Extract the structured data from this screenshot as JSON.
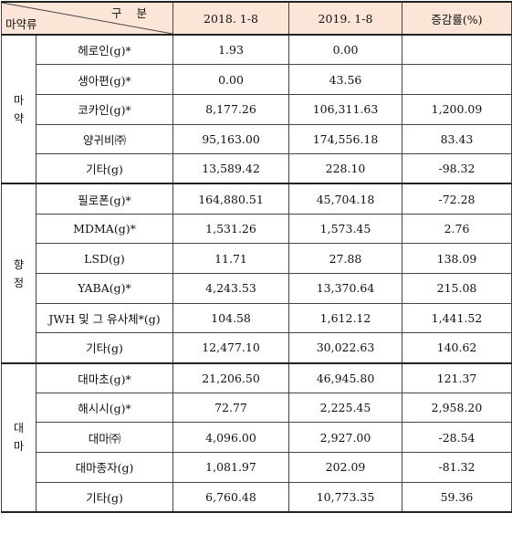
{
  "header": {
    "corner_top": "구 분",
    "corner_bottom": "마약류",
    "col_2018": "2018. 1-8",
    "col_2019": "2019. 1-8",
    "col_change": "증감률(%)"
  },
  "groups": [
    {
      "label_chars": [
        "마",
        "약"
      ],
      "rows": [
        {
          "item": "헤로인(g)*",
          "y2018": "1.93",
          "y2019": "0.00",
          "change": ""
        },
        {
          "item": "생아편(g)*",
          "y2018": "0.00",
          "y2019": "43.56",
          "change": ""
        },
        {
          "item": "코카인(g)*",
          "y2018": "8,177.26",
          "y2019": "106,311.63",
          "change": "1,200.09"
        },
        {
          "item": "양귀비㈜",
          "y2018": "95,163.00",
          "y2019": "174,556.18",
          "change": "83.43"
        },
        {
          "item": "기타(g)",
          "y2018": "13,589.42",
          "y2019": "228.10",
          "change": "-98.32"
        }
      ]
    },
    {
      "label_chars": [
        "향",
        "정"
      ],
      "rows": [
        {
          "item": "필로폰(g)*",
          "y2018": "164,880.51",
          "y2019": "45,704.18",
          "change": "-72.28"
        },
        {
          "item": "MDMA(g)*",
          "y2018": "1,531.26",
          "y2019": "1,573.45",
          "change": "2.76"
        },
        {
          "item": "LSD(g)",
          "y2018": "11.71",
          "y2019": "27.88",
          "change": "138.09"
        },
        {
          "item": "YABA(g)*",
          "y2018": "4,243.53",
          "y2019": "13,370.64",
          "change": "215.08"
        },
        {
          "item": "JWH 및 그 유사체*(g)",
          "y2018": "104.58",
          "y2019": "1,612.12",
          "change": "1,441.52"
        },
        {
          "item": "기타(g)",
          "y2018": "12,477.10",
          "y2019": "30,022.63",
          "change": "140.62"
        }
      ]
    },
    {
      "label_chars": [
        "대",
        "마"
      ],
      "rows": [
        {
          "item": "대마초(g)*",
          "y2018": "21,206.50",
          "y2019": "46,945.80",
          "change": "121.37"
        },
        {
          "item": "해시시(g)*",
          "y2018": "72.77",
          "y2019": "2,225.45",
          "change": "2,958.20"
        },
        {
          "item": "대마㈜",
          "y2018": "4,096.00",
          "y2019": "2,927.00",
          "change": "-28.54"
        },
        {
          "item": "대마종자(g)",
          "y2018": "1,081.97",
          "y2019": "202.09",
          "change": "-81.32"
        },
        {
          "item": "기타(g)",
          "y2018": "6,760.48",
          "y2019": "10,773.35",
          "change": "59.36"
        }
      ]
    }
  ],
  "colors": {
    "header_bg": "#fbe5d6",
    "border": "#444444"
  }
}
